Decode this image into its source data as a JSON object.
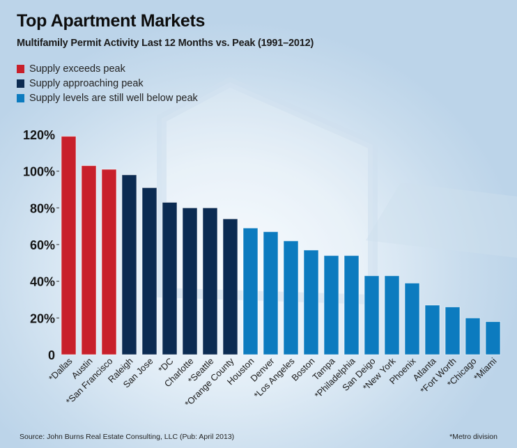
{
  "chart_data": {
    "type": "bar",
    "title": "Top Apartment Markets",
    "subtitle": "Multifamily Permit Activity Last 12 Months vs. Peak (1991–2012)",
    "xlabel": "",
    "ylabel": "",
    "ylim": [
      0,
      120
    ],
    "yticks": [
      0,
      20,
      40,
      60,
      80,
      100,
      120
    ],
    "ytick_labels": [
      "0",
      "20%",
      "40%",
      "60%",
      "80%",
      "100%",
      "120%"
    ],
    "grid": false,
    "legend_position": "top-left",
    "legend": [
      {
        "key": "exceeds",
        "label": "Supply exceeds peak",
        "color": "#c8202b"
      },
      {
        "key": "approaching",
        "label": "Supply approaching peak",
        "color": "#0b2b52"
      },
      {
        "key": "below",
        "label": "Supply levels are still well below peak",
        "color": "#0c7bbf"
      }
    ],
    "categories": [
      "*Dallas",
      "Austin",
      "*San Francisco",
      "Raleigh",
      "San Jose",
      "*DC",
      "Charlotte",
      "*Seattle",
      "*Orange County",
      "Houston",
      "Denver",
      "*Los Angeles",
      "Boston",
      "Tampa",
      "*Philadelphia",
      "San Deigo",
      "*New York",
      "Phoenix",
      "Atlanta",
      "*Fort Worth",
      "*Chicago",
      "*Miami"
    ],
    "values": [
      119,
      103,
      101,
      98,
      91,
      83,
      80,
      80,
      74,
      69,
      67,
      62,
      57,
      54,
      54,
      43,
      43,
      39,
      27,
      26,
      20,
      18
    ],
    "groups": [
      "exceeds",
      "exceeds",
      "exceeds",
      "approaching",
      "approaching",
      "approaching",
      "approaching",
      "approaching",
      "approaching",
      "below",
      "below",
      "below",
      "below",
      "below",
      "below",
      "below",
      "below",
      "below",
      "below",
      "below",
      "below",
      "below"
    ],
    "unit": "%"
  },
  "footer": {
    "source": "Source: John Burns Real Estate Consulting, LLC (Pub: April 2013)",
    "note": "*Metro division"
  }
}
